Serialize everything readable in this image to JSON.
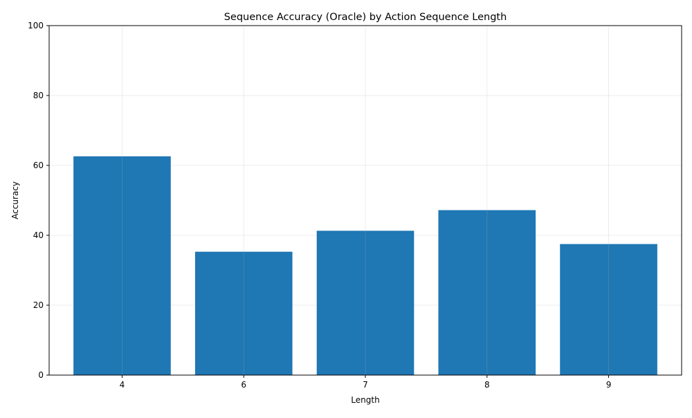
{
  "chart_data": {
    "type": "bar",
    "title": "Sequence Accuracy (Oracle) by Action Sequence Length",
    "xlabel": "Length",
    "ylabel": "Accuracy",
    "categories": [
      "4",
      "6",
      "7",
      "8",
      "9"
    ],
    "values": [
      62.6,
      35.3,
      41.3,
      47.2,
      37.5
    ],
    "ylim": [
      0,
      100
    ],
    "yticks": [
      0,
      20,
      40,
      60,
      80,
      100
    ],
    "grid": true,
    "legend": "none",
    "bar_color": "#1f77b4"
  }
}
